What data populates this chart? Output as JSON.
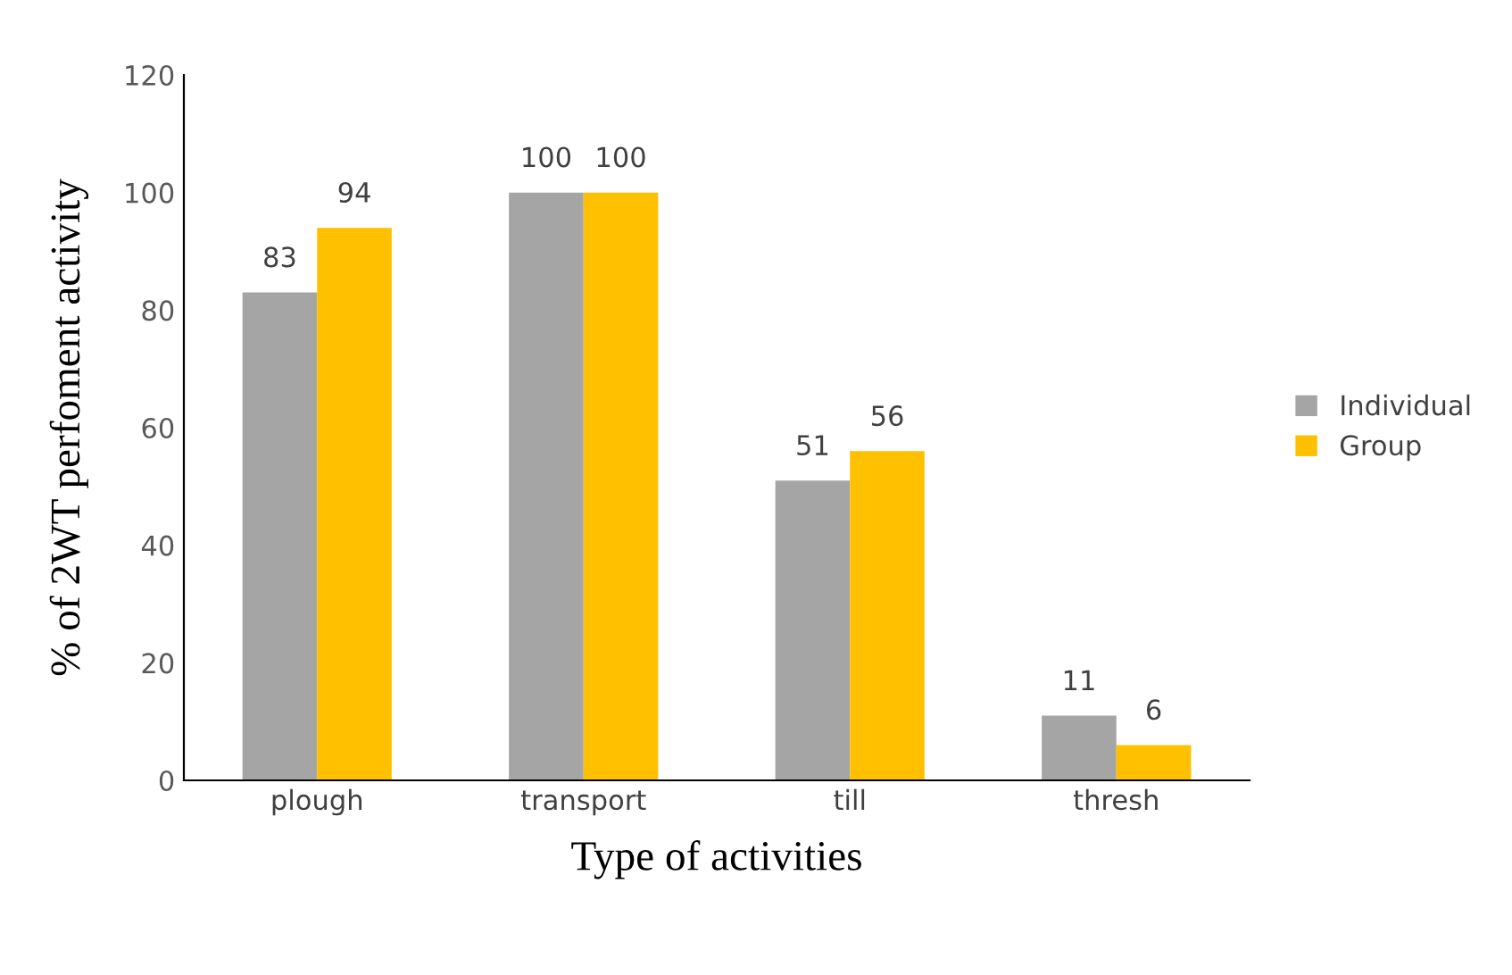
{
  "chart_data": {
    "type": "bar",
    "xlabel": "Type of activities",
    "ylabel": "% of 2WT perfoment activity",
    "categories": [
      "plough",
      "transport",
      "till",
      "thresh"
    ],
    "series": [
      {
        "name": "Individual",
        "color": "#a5a5a5",
        "values": [
          83,
          100,
          51,
          11
        ]
      },
      {
        "name": "Group",
        "color": "#ffc000",
        "values": [
          94,
          100,
          56,
          6
        ]
      }
    ],
    "ylim": [
      0,
      120
    ],
    "yticks": [
      0,
      20,
      40,
      60,
      80,
      100,
      120
    ],
    "data_labels": true,
    "legend": "right",
    "grid": false
  }
}
